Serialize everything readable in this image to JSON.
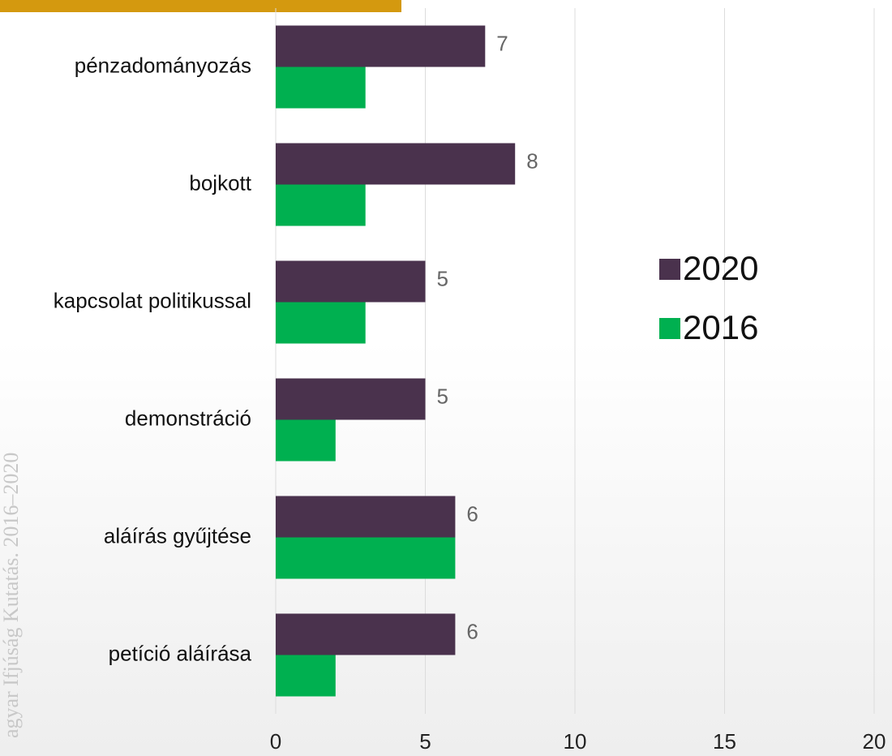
{
  "chart_data": {
    "type": "hbar",
    "source": "agyar Ifjúság Kutatás. 2016–2020",
    "categories": [
      "pénzadományozás",
      "bojkott",
      "kapcsolat politikussal",
      "demonstráció",
      "aláírás gyűjtése",
      "petíció aláírása"
    ],
    "series": [
      {
        "name": "2020",
        "color": "#4a324d",
        "values": [
          7,
          8,
          5,
          5,
          6,
          6
        ],
        "show_labels": true
      },
      {
        "name": "2016",
        "color": "#00b050",
        "values": [
          3,
          3,
          3,
          2,
          6,
          2
        ],
        "show_labels": false
      }
    ],
    "xlim": [
      0,
      20
    ],
    "xticks": [
      0,
      5,
      10,
      15,
      20
    ],
    "grid": true,
    "legend": "right"
  }
}
